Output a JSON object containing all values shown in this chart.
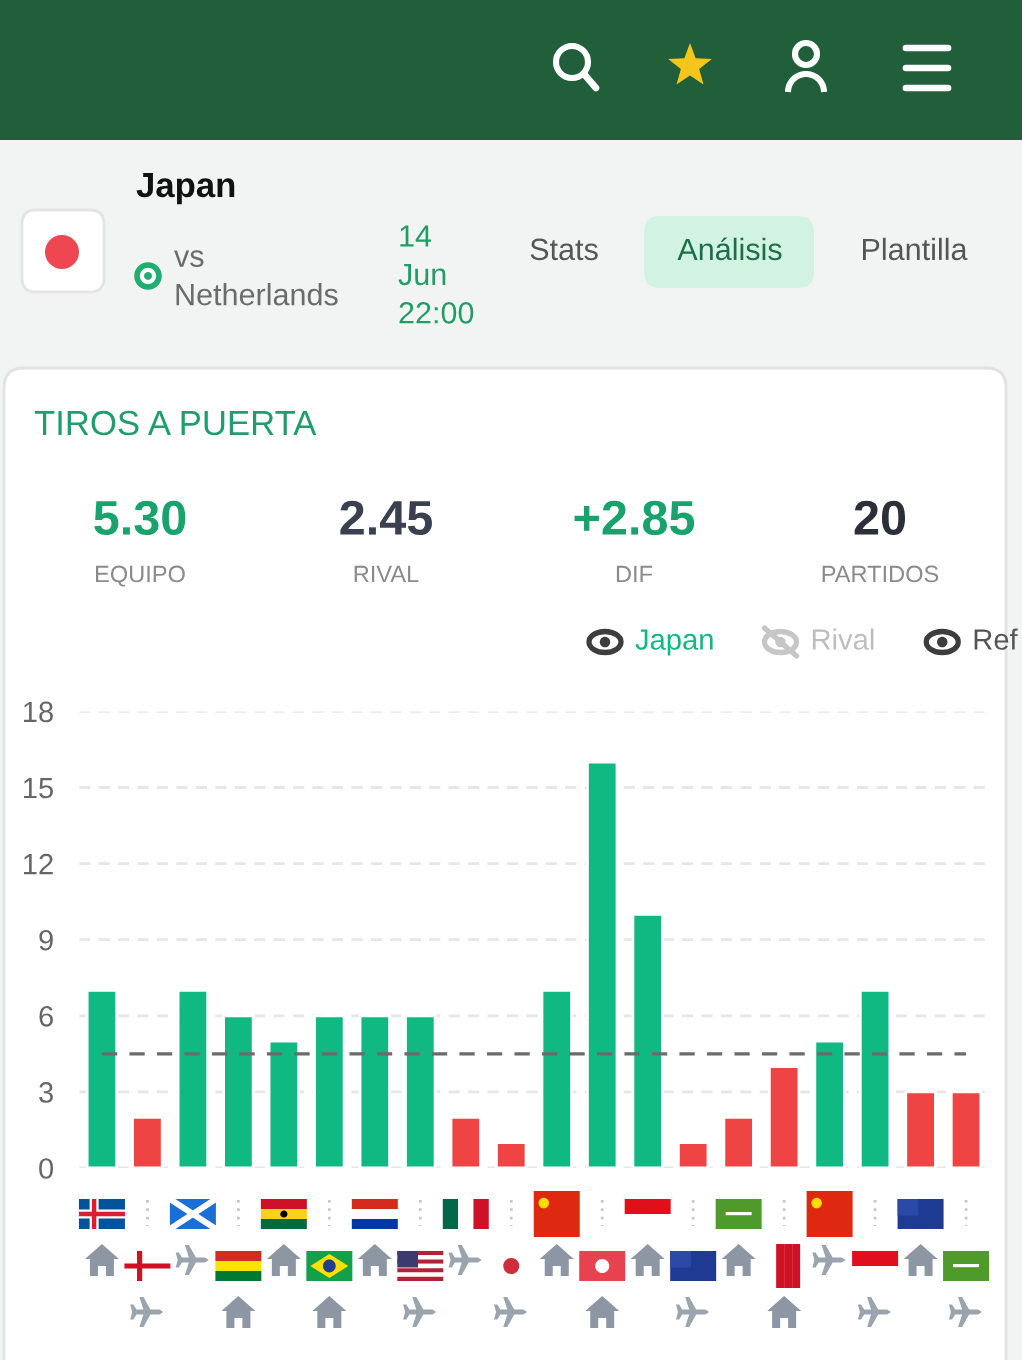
{
  "chart_data": {
    "type": "bar",
    "title": "TIROS A PUERTA",
    "categories": [
      null,
      null,
      null,
      null,
      null,
      null,
      null,
      null,
      null,
      null,
      null,
      null,
      null,
      null,
      null,
      null,
      null,
      null,
      null,
      null
    ],
    "series": [
      {
        "name": "Japan",
        "values": [
          7,
          2,
          7,
          6,
          5,
          6,
          6,
          6,
          2,
          1,
          7,
          16,
          10,
          1,
          2,
          4,
          5,
          7,
          3,
          3
        ],
        "colors": [
          "#10b981",
          "#ef4444",
          "#10b981",
          "#10b981",
          "#10b981",
          "#10b981",
          "#10b981",
          "#10b981",
          "#ef4444",
          "#ef4444",
          "#10b981",
          "#10b981",
          "#10b981",
          "#ef4444",
          "#ef4444",
          "#ef4444",
          "#10b981",
          "#10b981",
          "#ef4444",
          "#ef4444"
        ]
      }
    ],
    "ylim": [
      0,
      18
    ],
    "yticks": [
      0,
      3,
      6,
      9,
      12,
      15,
      18
    ],
    "grid": "y",
    "legend": "top right",
    "ref_lines": [
      {
        "axis": "y",
        "value": 4.5,
        "label": "Ref",
        "color": "#6b6b6b",
        "line_style": "dashed"
      }
    ],
    "annotations": [
      "Japan",
      "vs Netherlands",
      "14 Jun 22:00",
      "Stats",
      "Análisis",
      "Plantilla",
      "5.30",
      "EQUIPO",
      "2.45",
      "RIVAL",
      "+2.85",
      "DIF",
      "20",
      "PARTIDOS",
      "Rival"
    ]
  }
}
